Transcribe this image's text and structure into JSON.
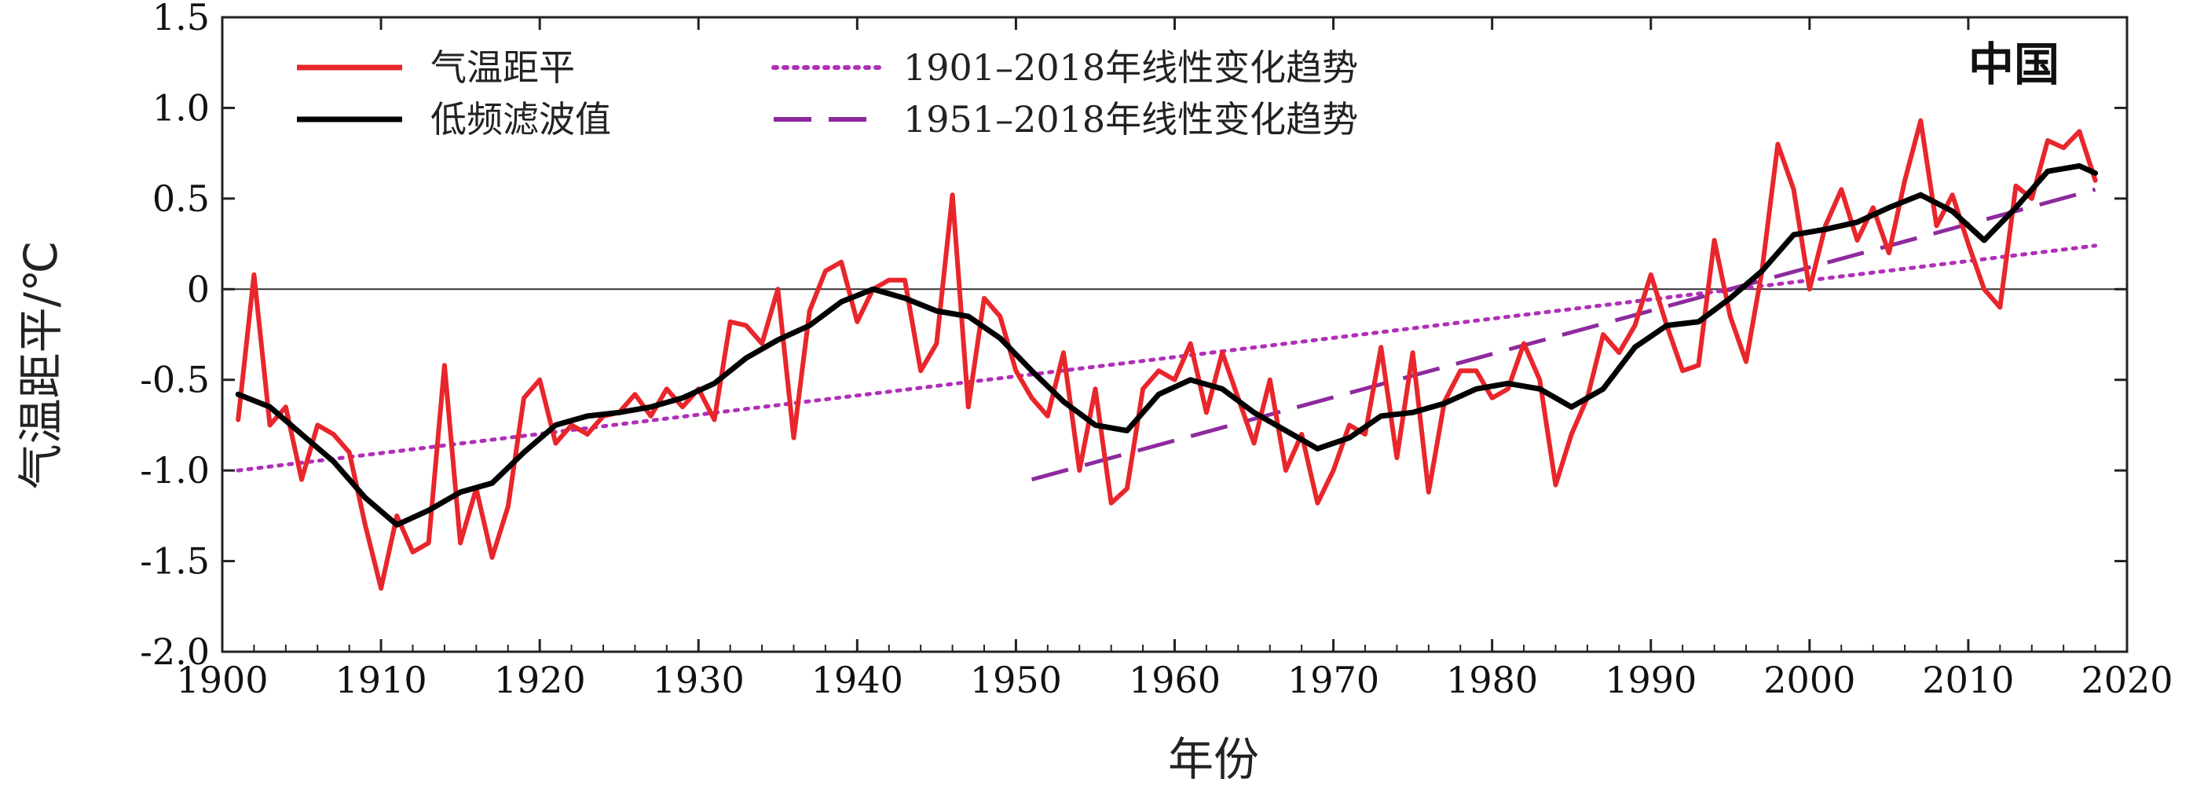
{
  "chart_data": {
    "type": "line",
    "region_label": "中国",
    "xlabel": "年份",
    "ylabel": "气温距平/℃",
    "xlim": [
      1900,
      2020
    ],
    "ylim": [
      -2.0,
      1.5
    ],
    "xticks": [
      1900,
      1910,
      1920,
      1930,
      1940,
      1950,
      1960,
      1970,
      1980,
      1990,
      2000,
      2010,
      2020
    ],
    "yticks": [
      "1.5",
      "1.0",
      "0.5",
      "0",
      "-0.5",
      "-1.0",
      "-1.5",
      "-2.0"
    ],
    "ytick_values": [
      1.5,
      1.0,
      0.5,
      0,
      -0.5,
      -1.0,
      -1.5,
      -2.0
    ],
    "zero_line": true,
    "legend": [
      {
        "label": "气温距平",
        "color": "#e8262b",
        "style": "solid"
      },
      {
        "label": "低频滤波值",
        "color": "#000000",
        "style": "solid"
      },
      {
        "label": "1901–2018年线性变化趋势",
        "color": "#b02fb8",
        "style": "dotted"
      },
      {
        "label": "1951–2018年线性变化趋势",
        "color": "#8e2a9e",
        "style": "dashed"
      }
    ],
    "series": [
      {
        "name": "气温距平",
        "color": "#e8262b",
        "x": [
          1901,
          1902,
          1903,
          1904,
          1905,
          1906,
          1907,
          1908,
          1909,
          1910,
          1911,
          1912,
          1913,
          1914,
          1915,
          1916,
          1917,
          1918,
          1919,
          1920,
          1921,
          1922,
          1923,
          1924,
          1925,
          1926,
          1927,
          1928,
          1929,
          1930,
          1931,
          1932,
          1933,
          1934,
          1935,
          1936,
          1937,
          1938,
          1939,
          1940,
          1941,
          1942,
          1943,
          1944,
          1945,
          1946,
          1947,
          1948,
          1949,
          1950,
          1951,
          1952,
          1953,
          1954,
          1955,
          1956,
          1957,
          1958,
          1959,
          1960,
          1961,
          1962,
          1963,
          1964,
          1965,
          1966,
          1967,
          1968,
          1969,
          1970,
          1971,
          1972,
          1973,
          1974,
          1975,
          1976,
          1977,
          1978,
          1979,
          1980,
          1981,
          1982,
          1983,
          1984,
          1985,
          1986,
          1987,
          1988,
          1989,
          1990,
          1991,
          1992,
          1993,
          1994,
          1995,
          1996,
          1997,
          1998,
          1999,
          2000,
          2001,
          2002,
          2003,
          2004,
          2005,
          2006,
          2007,
          2008,
          2009,
          2010,
          2011,
          2012,
          2013,
          2014,
          2015,
          2016,
          2017,
          2018
        ],
        "values": [
          -0.72,
          0.08,
          -0.75,
          -0.65,
          -1.05,
          -0.75,
          -0.8,
          -0.9,
          -1.3,
          -1.65,
          -1.25,
          -1.45,
          -1.4,
          -0.42,
          -1.4,
          -1.1,
          -1.48,
          -1.2,
          -0.6,
          -0.5,
          -0.85,
          -0.75,
          -0.8,
          -0.7,
          -0.68,
          -0.58,
          -0.7,
          -0.55,
          -0.65,
          -0.55,
          -0.72,
          -0.18,
          -0.2,
          -0.3,
          0.0,
          -0.82,
          -0.12,
          0.1,
          0.15,
          -0.18,
          0.0,
          0.05,
          0.05,
          -0.45,
          -0.3,
          0.52,
          -0.65,
          -0.05,
          -0.15,
          -0.45,
          -0.6,
          -0.7,
          -0.35,
          -1.0,
          -0.55,
          -1.18,
          -1.1,
          -0.55,
          -0.45,
          -0.5,
          -0.3,
          -0.68,
          -0.35,
          -0.6,
          -0.85,
          -0.5,
          -1.0,
          -0.8,
          -1.18,
          -1.0,
          -0.75,
          -0.8,
          -0.32,
          -0.93,
          -0.35,
          -1.12,
          -0.62,
          -0.45,
          -0.45,
          -0.6,
          -0.55,
          -0.3,
          -0.5,
          -1.08,
          -0.8,
          -0.6,
          -0.25,
          -0.35,
          -0.2,
          0.08,
          -0.2,
          -0.45,
          -0.42,
          0.27,
          -0.15,
          -0.4,
          0.1,
          0.8,
          0.55,
          0.0,
          0.35,
          0.55,
          0.27,
          0.45,
          0.2,
          0.6,
          0.93,
          0.35,
          0.52,
          0.25,
          0.0,
          -0.1,
          0.57,
          0.5,
          0.82,
          0.78,
          0.87,
          0.6
        ]
      },
      {
        "name": "低频滤波值",
        "color": "#000000",
        "x": [
          1901,
          1903,
          1905,
          1907,
          1909,
          1911,
          1913,
          1915,
          1917,
          1919,
          1921,
          1923,
          1925,
          1927,
          1929,
          1931,
          1933,
          1935,
          1937,
          1939,
          1941,
          1943,
          1945,
          1947,
          1949,
          1951,
          1953,
          1955,
          1957,
          1959,
          1961,
          1963,
          1965,
          1967,
          1969,
          1971,
          1973,
          1975,
          1977,
          1979,
          1981,
          1983,
          1985,
          1987,
          1989,
          1991,
          1993,
          1995,
          1997,
          1999,
          2001,
          2003,
          2005,
          2007,
          2009,
          2011,
          2013,
          2015,
          2017,
          2018
        ],
        "values": [
          -0.58,
          -0.65,
          -0.8,
          -0.95,
          -1.15,
          -1.3,
          -1.22,
          -1.12,
          -1.07,
          -0.9,
          -0.75,
          -0.7,
          -0.68,
          -0.65,
          -0.6,
          -0.52,
          -0.38,
          -0.28,
          -0.2,
          -0.07,
          0.0,
          -0.05,
          -0.12,
          -0.15,
          -0.27,
          -0.45,
          -0.62,
          -0.75,
          -0.78,
          -0.58,
          -0.5,
          -0.55,
          -0.68,
          -0.78,
          -0.88,
          -0.82,
          -0.7,
          -0.68,
          -0.63,
          -0.55,
          -0.52,
          -0.55,
          -0.65,
          -0.55,
          -0.32,
          -0.2,
          -0.18,
          -0.05,
          0.1,
          0.3,
          0.33,
          0.37,
          0.45,
          0.52,
          0.43,
          0.27,
          0.45,
          0.65,
          0.68,
          0.64
        ]
      },
      {
        "name": "1901–2018年线性变化趋势",
        "color": "#b02fb8",
        "x": [
          1901,
          2018
        ],
        "values": [
          -1.0,
          0.24
        ]
      },
      {
        "name": "1951–2018年线性变化趋势",
        "color": "#8e2a9e",
        "x": [
          1951,
          2018
        ],
        "values": [
          -1.05,
          0.55
        ]
      }
    ]
  }
}
